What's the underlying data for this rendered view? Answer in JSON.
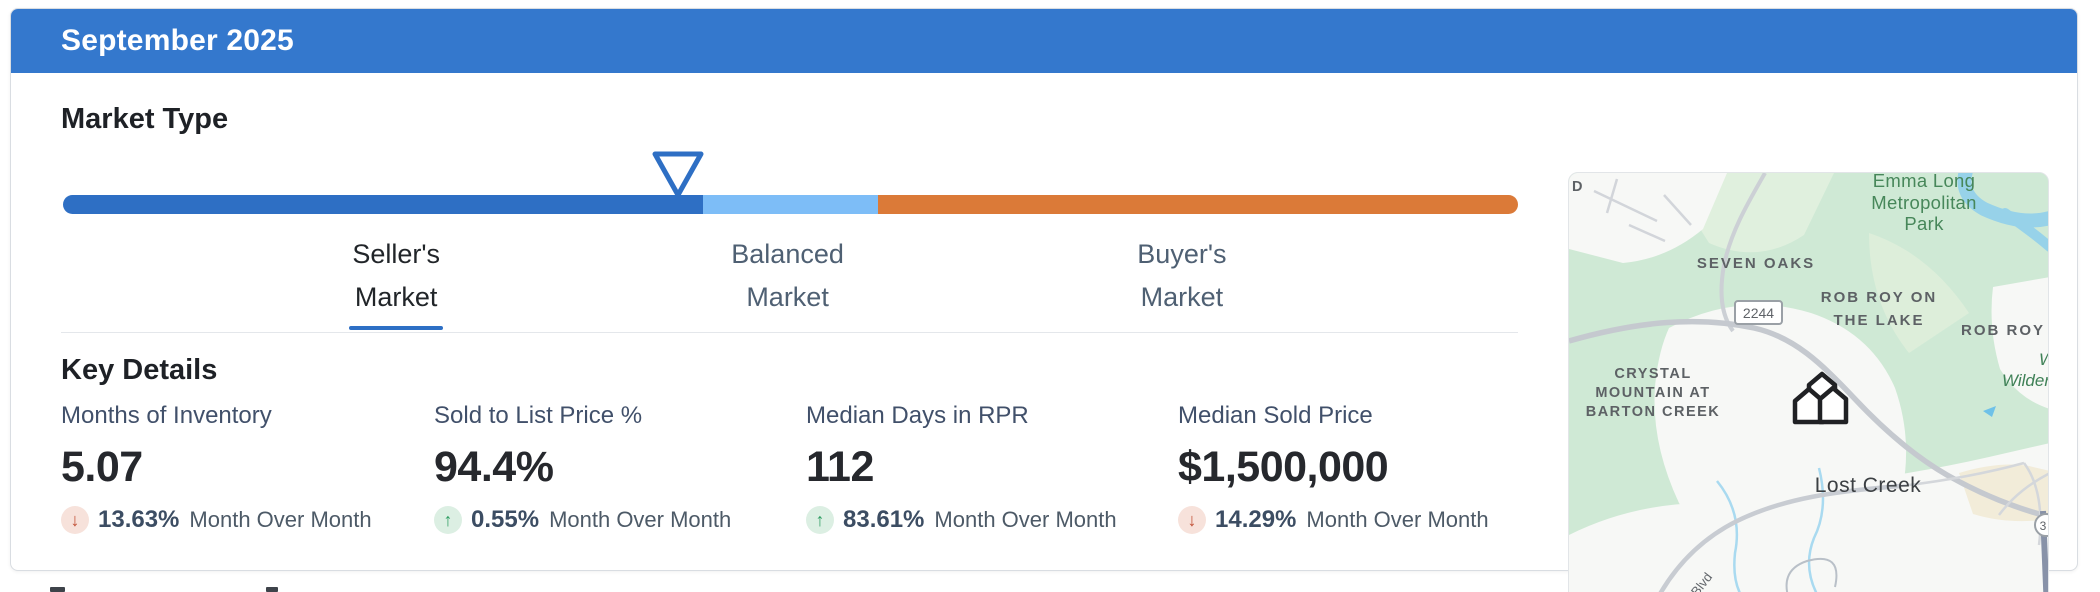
{
  "header": {
    "title": "September 2025"
  },
  "market_type": {
    "heading": "Market Type",
    "marker_pct": 42.3,
    "segments": [
      {
        "name": "sellers-zone",
        "color": "#2e6fc4",
        "width_pct": 44
      },
      {
        "name": "balanced-zone",
        "color": "#7dbdf7",
        "width_pct": 12
      },
      {
        "name": "buyers-zone",
        "color": "#db7a38",
        "width_pct": 44
      }
    ],
    "labels": [
      {
        "line1": "Seller's",
        "line2": "Market",
        "active": true
      },
      {
        "line1": "Balanced",
        "line2": "Market",
        "active": false
      },
      {
        "line1": "Buyer's",
        "line2": "Market",
        "active": false
      }
    ],
    "selected": "Seller's Market"
  },
  "key_details": {
    "heading": "Key Details",
    "metrics": [
      {
        "label": "Months of Inventory",
        "value": "5.07",
        "direction": "down",
        "change": "13.63%",
        "change_label": "Month Over Month"
      },
      {
        "label": "Sold to List Price %",
        "value": "94.4%",
        "direction": "up",
        "change": "0.55%",
        "change_label": "Month Over Month"
      },
      {
        "label": "Median Days in RPR",
        "value": "112",
        "direction": "up",
        "change": "83.61%",
        "change_label": "Month Over Month"
      },
      {
        "label": "Median Sold Price",
        "value": "$1,500,000",
        "direction": "down",
        "change": "14.29%",
        "change_label": "Month Over Month"
      }
    ]
  },
  "map": {
    "labels": {
      "park_line1": "Emma Long",
      "park_line2": "Metropolitan",
      "park_line3": "Park",
      "seven_oaks": "SEVEN OAKS",
      "rob_roy_lake_line1": "ROB ROY ON",
      "rob_roy_lake_line2": "THE LAKE",
      "rob_roy": "ROB ROY",
      "crystal_line1": "CRYSTAL",
      "crystal_line2": "MOUNTAIN AT",
      "crystal_line3": "BARTON CREEK",
      "wilderness_line1": "W",
      "wilderness_line2": "Wilder",
      "lost_creek": "Lost Creek",
      "route_2244": "2244",
      "route_360": "3",
      "road_blvd": "k Blvd",
      "road_fragment": "D"
    },
    "colors": {
      "park_green": "#cfe9d5",
      "water": "#97d2e9",
      "neighborhood": "#f7f8f6",
      "beige": "#f2ecd9"
    }
  },
  "colors": {
    "header_blue": "#3478cd",
    "seller_blue": "#2e6fc4",
    "balanced_blue": "#7dbdf7",
    "buyer_orange": "#db7a38",
    "up_green": "#2f9e63",
    "down_red": "#c14f35"
  }
}
